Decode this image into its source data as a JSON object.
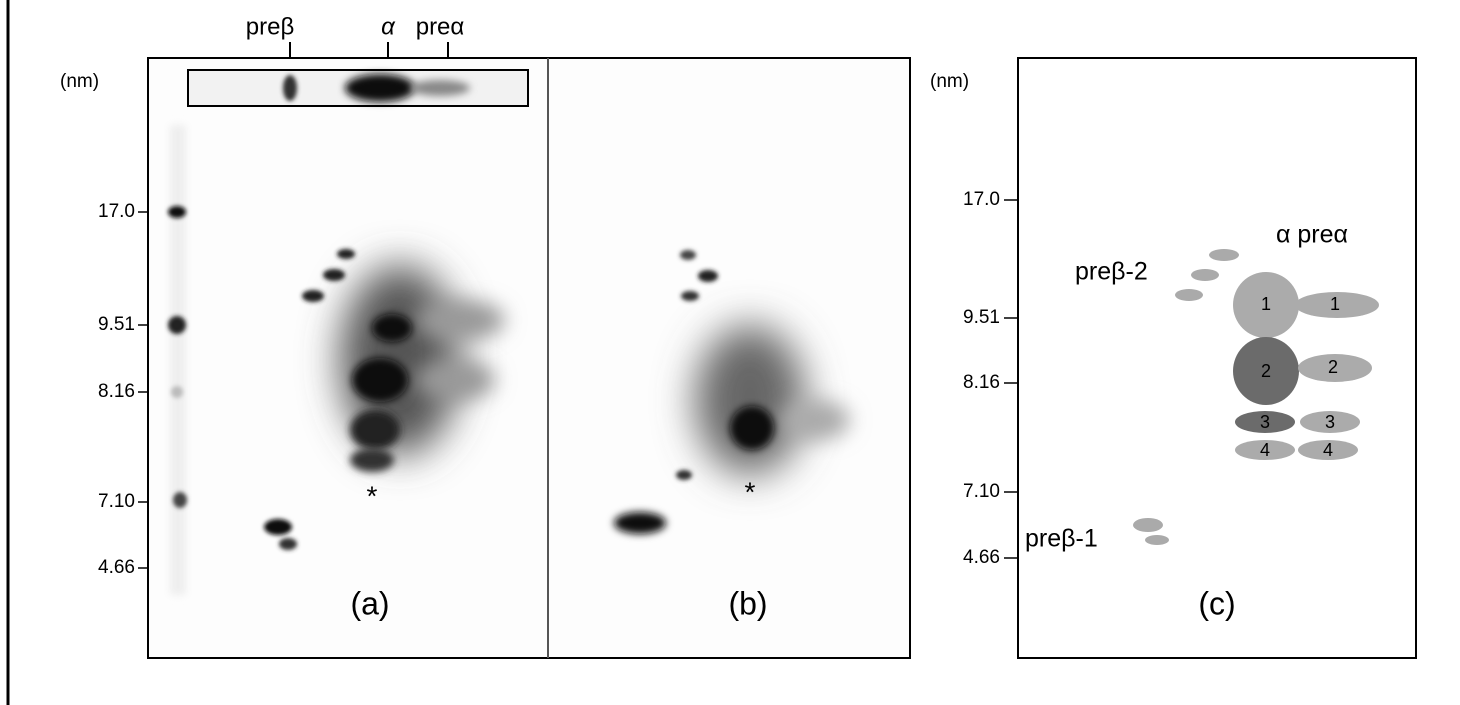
{
  "panels": {
    "a": {
      "label": "(a)",
      "unit": "(nm)",
      "sizes": [
        "17.0",
        "9.51",
        "8.16",
        "7.10",
        "4.66"
      ],
      "lanes": [
        "preβ",
        "α",
        "preα"
      ],
      "marker": "*"
    },
    "b": {
      "label": "(b)",
      "marker": "*"
    },
    "c": {
      "label": "(c)",
      "unit": "(nm)",
      "sizes": [
        "17.0",
        "9.51",
        "8.16",
        "7.10",
        "4.66"
      ],
      "header": "α preα",
      "groups": [
        "preβ-2",
        "preβ-1"
      ],
      "spots": [
        "1",
        "2",
        "3",
        "4"
      ]
    }
  }
}
